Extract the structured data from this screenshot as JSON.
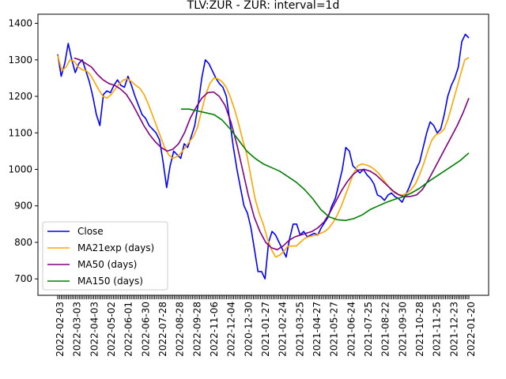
{
  "chart_data": {
    "type": "line",
    "title": "TLV:ZUR - ZUR: interval=1d",
    "xlabel": "",
    "ylabel": "",
    "ylim": [
      655,
      1425
    ],
    "yticks": [
      700,
      800,
      900,
      1000,
      1100,
      1200,
      1300,
      1400
    ],
    "x_tick_labels": [
      "2022-02-03",
      "2022-03-03",
      "2022-04-03",
      "2022-05-02",
      "2022-06-01",
      "2022-06-30",
      "2022-07-28",
      "2022-08-28",
      "2022-09-28",
      "2022-11-06",
      "2022-12-04",
      "2020-12-30",
      "2021-01-27",
      "2021-02-24",
      "2021-03-25",
      "2021-04-27",
      "2021-05-27",
      "2021-06-24",
      "2021-07-25",
      "2021-08-22",
      "2021-09-30",
      "2021-10-28",
      "2021-11-25",
      "2021-12-23",
      "2022-01-20"
    ],
    "grid": false,
    "legend": {
      "position": "lower-left"
    },
    "series": [
      {
        "name": "Close",
        "color": "#0000ff",
        "values": [
          1315,
          1255,
          1290,
          1345,
          1300,
          1265,
          1290,
          1300,
          1270,
          1240,
          1200,
          1150,
          1120,
          1205,
          1215,
          1210,
          1230,
          1245,
          1230,
          1225,
          1255,
          1230,
          1200,
          1175,
          1150,
          1140,
          1120,
          1110,
          1100,
          1080,
          1020,
          950,
          1010,
          1050,
          1040,
          1030,
          1070,
          1060,
          1090,
          1120,
          1180,
          1250,
          1300,
          1290,
          1270,
          1250,
          1235,
          1225,
          1200,
          1130,
          1060,
          1000,
          950,
          900,
          880,
          840,
          780,
          720,
          720,
          700,
          800,
          830,
          820,
          800,
          780,
          760,
          810,
          850,
          850,
          820,
          830,
          815,
          820,
          825,
          820,
          840,
          855,
          870,
          900,
          920,
          960,
          1000,
          1060,
          1050,
          1010,
          1000,
          990,
          1000,
          985,
          975,
          960,
          930,
          925,
          915,
          930,
          935,
          925,
          920,
          910,
          930,
          950,
          975,
          1000,
          1020,
          1060,
          1100,
          1130,
          1120,
          1100,
          1110,
          1150,
          1200,
          1230,
          1250,
          1280,
          1350,
          1370,
          1360
        ]
      },
      {
        "name": "MA21exp (days)",
        "color": "#ffa500",
        "values": [
          1312,
          1270,
          1280,
          1300,
          1296,
          1280,
          1273,
          1270,
          1258,
          1238,
          1218,
          1200,
          1195,
          1205,
          1220,
          1235,
          1245,
          1248,
          1240,
          1230,
          1222,
          1205,
          1180,
          1150,
          1120,
          1090,
          1060,
          1040,
          1030,
          1035,
          1045,
          1060,
          1075,
          1090,
          1115,
          1160,
          1205,
          1235,
          1250,
          1248,
          1240,
          1225,
          1198,
          1165,
          1125,
          1080,
          1040,
          980,
          920,
          880,
          850,
          810,
          780,
          760,
          765,
          775,
          790,
          790,
          790,
          800,
          810,
          815,
          818,
          820,
          825,
          830,
          840,
          855,
          875,
          900,
          930,
          960,
          990,
          1010,
          1015,
          1012,
          1008,
          1000,
          990,
          975,
          960,
          945,
          935,
          930,
          930,
          935,
          945,
          960,
          985,
          1015,
          1050,
          1080,
          1095,
          1100,
          1110,
          1140,
          1180,
          1220,
          1260,
          1300,
          1306
        ]
      },
      {
        "name": "MA50 (days)",
        "color": "#800080",
        "values": [
          1305,
          1300,
          1290,
          1280,
          1260,
          1245,
          1235,
          1230,
          1220,
          1205,
          1180,
          1150,
          1120,
          1095,
          1075,
          1060,
          1050,
          1055,
          1070,
          1100,
          1140,
          1170,
          1195,
          1210,
          1212,
          1200,
          1175,
          1130,
          1070,
          1000,
          930,
          870,
          830,
          800,
          785,
          780,
          790,
          805,
          815,
          820,
          825,
          830,
          840,
          855,
          880,
          910,
          940,
          965,
          985,
          998,
          1000,
          995,
          985,
          970,
          955,
          940,
          930,
          925,
          926,
          930,
          945,
          970,
          1000,
          1030,
          1060,
          1090,
          1120,
          1155,
          1195
        ]
      },
      {
        "name": "MA150 (days)",
        "color": "#008000",
        "values": [
          1165,
          1165,
          1160,
          1155,
          1150,
          1135,
          1110,
          1080,
          1050,
          1030,
          1015,
          1005,
          995,
          980,
          965,
          945,
          920,
          890,
          870,
          862,
          860,
          865,
          875,
          890,
          900,
          910,
          918,
          925,
          935,
          948,
          965,
          980,
          995,
          1010,
          1025,
          1045
        ]
      }
    ]
  }
}
